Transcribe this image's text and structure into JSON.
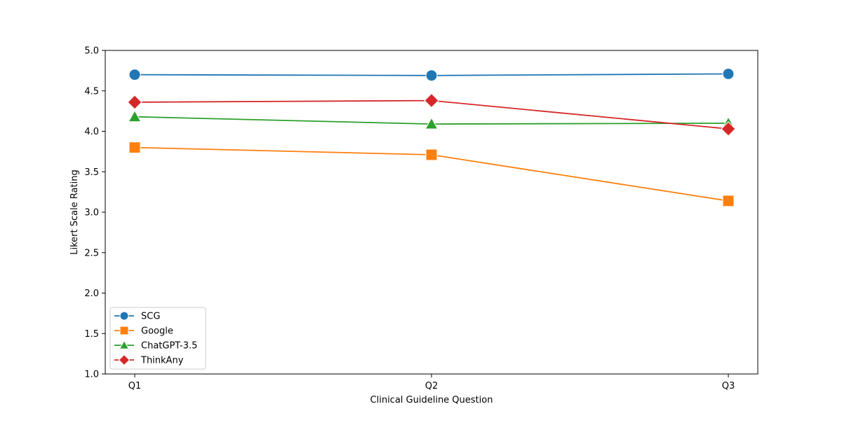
{
  "chart_data": {
    "type": "line",
    "title": "",
    "xlabel": "Clinical Guideline Question",
    "ylabel": "Likert Scale Rating",
    "categories": [
      "Q1",
      "Q2",
      "Q3"
    ],
    "ylim": [
      1.0,
      5.0
    ],
    "yticks": [
      "1.0",
      "1.5",
      "2.0",
      "2.5",
      "3.0",
      "3.5",
      "4.0",
      "4.5",
      "5.0"
    ],
    "grid": false,
    "legend_position": "lower-left",
    "series": [
      {
        "name": "SCG",
        "values": [
          4.7,
          4.69,
          4.71
        ],
        "color": "#1f77b4",
        "marker": "circle"
      },
      {
        "name": "Google",
        "values": [
          3.8,
          3.71,
          3.14
        ],
        "color": "#ff7f0e",
        "marker": "square"
      },
      {
        "name": "ChatGPT-3.5",
        "values": [
          4.18,
          4.09,
          4.1
        ],
        "color": "#2ca02c",
        "marker": "triangle"
      },
      {
        "name": "ThinkAny",
        "values": [
          4.36,
          4.38,
          4.03
        ],
        "color": "#d62728",
        "marker": "diamond"
      }
    ]
  }
}
